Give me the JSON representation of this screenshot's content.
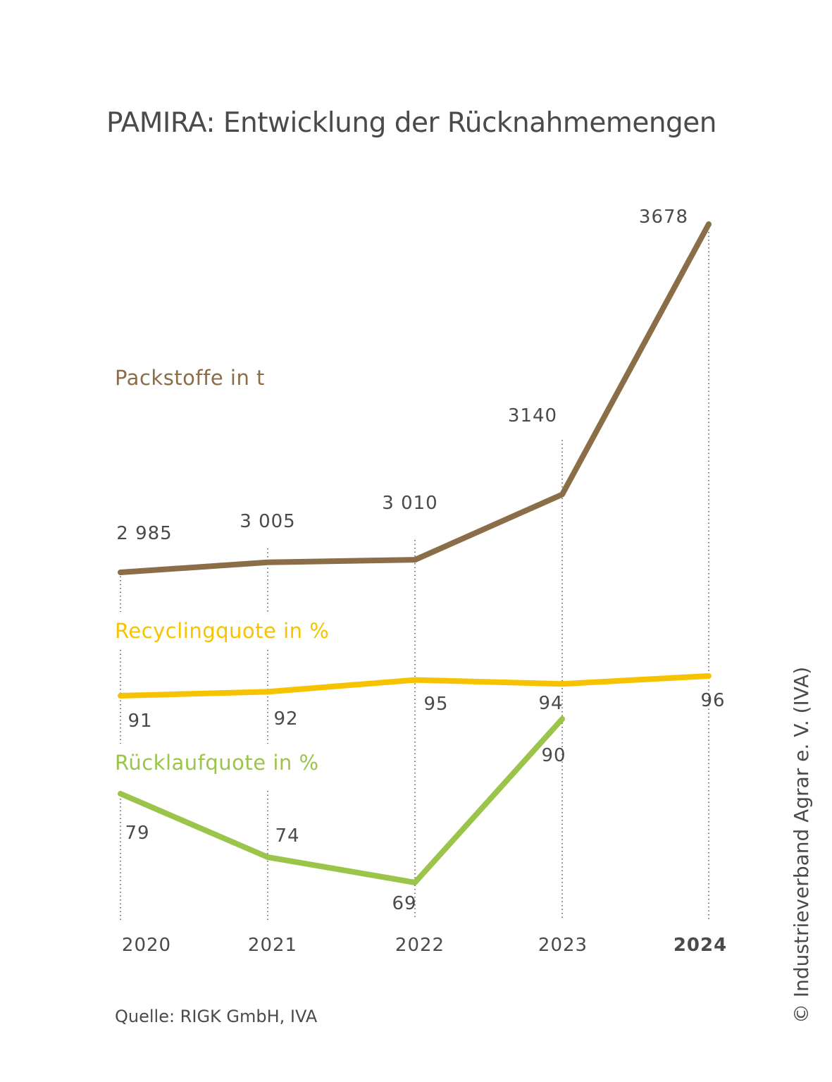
{
  "chart_data": {
    "type": "line",
    "title": "PAMIRA: Entwicklung der Rücknahmemengen",
    "categories": [
      "2020",
      "2021",
      "2022",
      "2023",
      "2024"
    ],
    "series": [
      {
        "name": "Packstoffe in t",
        "color": "#8b6e47",
        "values": [
          2985,
          3005,
          3010,
          3140,
          3678
        ],
        "labels": [
          "2 985",
          "3 005",
          "3 010",
          "3140",
          "3678"
        ]
      },
      {
        "name": "Recyclingquote in %",
        "color": "#f7c300",
        "values": [
          91,
          92,
          95,
          94,
          96
        ],
        "labels": [
          "91",
          "92",
          "95",
          "94",
          "96"
        ]
      },
      {
        "name": "Rücklaufquote in %",
        "color": "#9bc44a",
        "values": [
          79,
          74,
          69,
          90,
          null
        ],
        "labels": [
          "79",
          "74",
          "69",
          "90",
          null
        ]
      }
    ],
    "highlight_category": "2024",
    "grid": "dotted vertical guides"
  },
  "source": "Quelle: RIGK GmbH, IVA",
  "copyright": "© Industrieverband Agrar e. V. (IVA)",
  "colors": {
    "text": "#4a4a4a",
    "guide": "#555555"
  }
}
